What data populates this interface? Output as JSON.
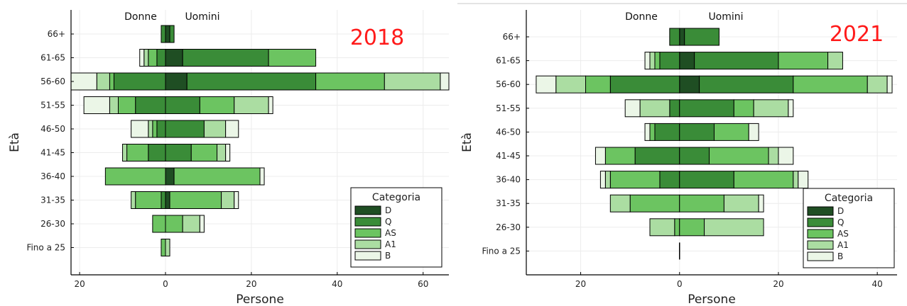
{
  "chart_data": [
    {
      "type": "bar",
      "orientation": "horizontal",
      "stacking": "stacked-diverging",
      "year": "2018",
      "left_header": "Donne",
      "right_header": "Uomini",
      "xlabel": "Persone",
      "ylabel": "Età",
      "xlim": [
        -22,
        66
      ],
      "xticks": [
        -20,
        0,
        20,
        40,
        60
      ],
      "xtick_labels": [
        "20",
        "0",
        "20",
        "40",
        "60"
      ],
      "grid": true,
      "legend_title": "Categoria",
      "legend_position": "bottom-right",
      "categories": [
        "66+",
        "61-65",
        "56-60",
        "51-55",
        "46-50",
        "41-45",
        "36-40",
        "31-35",
        "26-30",
        "Fino a 25"
      ],
      "series": [
        {
          "name": "D",
          "women": [
            0,
            0,
            0,
            0,
            0,
            0,
            0,
            0,
            0,
            0
          ],
          "men": [
            1,
            4,
            5,
            0,
            0,
            0,
            2,
            1,
            0,
            0
          ]
        },
        {
          "name": "Q",
          "women": [
            1,
            2,
            12,
            7,
            2,
            4,
            0,
            1,
            0,
            0
          ],
          "men": [
            1,
            20,
            30,
            8,
            9,
            6,
            0,
            0,
            0,
            0
          ]
        },
        {
          "name": "AS",
          "women": [
            0,
            2,
            1,
            4,
            1,
            5,
            14,
            6,
            3,
            1
          ],
          "men": [
            0,
            11,
            16,
            8,
            0,
            6,
            20,
            12,
            4,
            0
          ]
        },
        {
          "name": "A1",
          "women": [
            0,
            1,
            3,
            2,
            1,
            1,
            0,
            1,
            0,
            0
          ],
          "men": [
            0,
            0,
            13,
            8,
            5,
            2,
            0,
            3,
            4,
            1
          ]
        },
        {
          "name": "B",
          "women": [
            0,
            1,
            6,
            6,
            4,
            0,
            0,
            0,
            0,
            0
          ],
          "men": [
            0,
            0,
            2,
            1,
            3,
            1,
            1,
            1,
            1,
            0
          ]
        }
      ]
    },
    {
      "type": "bar",
      "orientation": "horizontal",
      "stacking": "stacked-diverging",
      "year": "2021",
      "left_header": "Donne",
      "right_header": "Uomini",
      "xlabel": "Persone",
      "ylabel": "Età",
      "xlim": [
        -31,
        44
      ],
      "xticks": [
        -20,
        0,
        20,
        40
      ],
      "xtick_labels": [
        "20",
        "0",
        "20",
        "40"
      ],
      "grid": true,
      "legend_title": "Categoria",
      "legend_position": "bottom-right",
      "categories": [
        "66+",
        "61-65",
        "56-60",
        "51-55",
        "46-50",
        "41-45",
        "36-40",
        "31-35",
        "26-30",
        "Fino a 25"
      ],
      "series": [
        {
          "name": "D",
          "women": [
            0,
            0,
            0,
            0,
            0,
            0,
            0,
            0,
            0,
            0
          ],
          "men": [
            1,
            3,
            4,
            0,
            0,
            0,
            0,
            0,
            0,
            0
          ]
        },
        {
          "name": "Q",
          "women": [
            2,
            4,
            14,
            2,
            5,
            9,
            4,
            0,
            0,
            0
          ],
          "men": [
            7,
            17,
            19,
            11,
            7,
            6,
            11,
            0,
            0,
            0
          ]
        },
        {
          "name": "AS",
          "women": [
            0,
            1,
            5,
            0,
            1,
            6,
            10,
            10,
            1,
            0
          ],
          "men": [
            0,
            10,
            15,
            4,
            7,
            12,
            12,
            9,
            5,
            0
          ]
        },
        {
          "name": "A1",
          "women": [
            0,
            1,
            6,
            6,
            0,
            0,
            1,
            4,
            5,
            0
          ],
          "men": [
            0,
            3,
            4,
            7,
            0,
            2,
            1,
            7,
            12,
            0
          ]
        },
        {
          "name": "B",
          "women": [
            0,
            1,
            4,
            3,
            1,
            2,
            1,
            0,
            0,
            0
          ],
          "men": [
            0,
            0,
            1,
            1,
            2,
            3,
            2,
            1,
            0,
            0
          ]
        }
      ]
    }
  ],
  "colors": {
    "D": "#1f4e23",
    "Q": "#3a8c38",
    "AS": "#6cc461",
    "A1": "#abdda2",
    "B": "#ebf6e7",
    "year_label": "#ff1a1a",
    "grid": "#ececec"
  }
}
